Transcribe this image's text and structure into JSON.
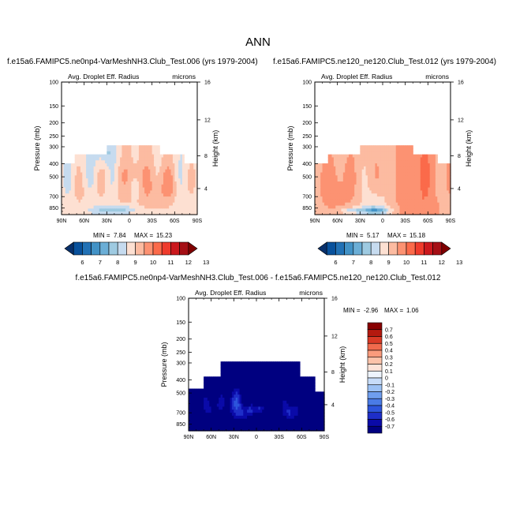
{
  "main_title": "ANN",
  "colors": {
    "scale_top": [
      "#08306b",
      "#08519c",
      "#2171b5",
      "#4292c6",
      "#6baed6",
      "#9ecae1",
      "#c6dbef",
      "#fde0d2",
      "#fcbba1",
      "#fc9272",
      "#fb6a4a",
      "#ef3b2c",
      "#cb181d",
      "#a50f15",
      "#7f0000"
    ],
    "scale_diff": [
      "#000080",
      "#0a0aa8",
      "#1e2ec8",
      "#2d55dc",
      "#4a7be6",
      "#6f9eee",
      "#9cc1f4",
      "#c7dcf8",
      "#eef4fd",
      "#fde3d8",
      "#fcc3aa",
      "#fa9b7c",
      "#f06a4d",
      "#d93a26",
      "#b4190f",
      "#880000"
    ]
  },
  "chart_data": [
    {
      "type": "heatmap",
      "title": "f.e15a6.FAMIPC5.ne0np4-VarMeshNH3.Club_Test.006 (yrs 1979-2004)",
      "left_string": "Avg. Droplet Eff. Radius",
      "right_string": "microns",
      "ylabel": "Pressure (mb)",
      "ylabel_right": "Height (km)",
      "xticks": [
        "90N",
        "60N",
        "30N",
        "0",
        "30S",
        "60S",
        "90S"
      ],
      "yticks": [
        "100",
        "150",
        "200",
        "250",
        "300",
        "400",
        "500",
        "700",
        "850"
      ],
      "yticks_right": [
        "16",
        "12",
        "8",
        "4"
      ],
      "min_label": "MIN =",
      "min_value": "7.84",
      "max_label": "MAX =",
      "max_value": "15.23",
      "colorbar_labels": [
        "6",
        "7",
        "8",
        "9",
        "10",
        "11",
        "12",
        "13"
      ],
      "ylim": [
        1000,
        100
      ],
      "xlim": [
        "90N",
        "90S"
      ]
    },
    {
      "type": "heatmap",
      "title": "f.e15a6.FAMIPC5.ne120_ne120.Club_Test.012 (yrs 1979-2004)",
      "left_string": "Avg. Droplet Eff. Radius",
      "right_string": "microns",
      "ylabel": "Pressure (mb)",
      "ylabel_right": "Height (km)",
      "xticks": [
        "90N",
        "60N",
        "30N",
        "0",
        "30S",
        "60S",
        "90S"
      ],
      "yticks": [
        "100",
        "150",
        "200",
        "250",
        "300",
        "400",
        "500",
        "700",
        "850"
      ],
      "yticks_right": [
        "16",
        "12",
        "8",
        "4"
      ],
      "min_label": "MIN =",
      "min_value": "5.17",
      "max_label": "MAX =",
      "max_value": "15.18",
      "colorbar_labels": [
        "6",
        "7",
        "8",
        "9",
        "10",
        "11",
        "12",
        "13"
      ],
      "ylim": [
        1000,
        100
      ],
      "xlim": [
        "90N",
        "90S"
      ]
    },
    {
      "type": "heatmap",
      "title": "f.e15a6.FAMIPC5.ne0np4-VarMeshNH3.Club_Test.006 - f.e15a6.FAMIPC5.ne120_ne120.Club_Test.012",
      "left_string": "Avg. Droplet Eff. Radius",
      "right_string": "microns",
      "ylabel": "Pressure (mb)",
      "ylabel_right": "Height (km)",
      "xticks": [
        "90N",
        "60N",
        "30N",
        "0",
        "30S",
        "60S",
        "90S"
      ],
      "yticks": [
        "100",
        "150",
        "200",
        "250",
        "300",
        "400",
        "500",
        "700",
        "850"
      ],
      "yticks_right": [
        "16",
        "12",
        "8",
        "4"
      ],
      "min_label": "MIN =",
      "min_value": "-2.96",
      "max_label": "MAX =",
      "max_value": "1.06",
      "colorbar_labels": [
        "0.7",
        "0.6",
        "0.5",
        "0.4",
        "0.3",
        "0.2",
        "0.1",
        "0",
        "-0.1",
        "-0.2",
        "-0.3",
        "-0.4",
        "-0.5",
        "-0.6",
        "-0.7"
      ],
      "ylim": [
        1000,
        100
      ],
      "xlim": [
        "90N",
        "90S"
      ]
    }
  ]
}
